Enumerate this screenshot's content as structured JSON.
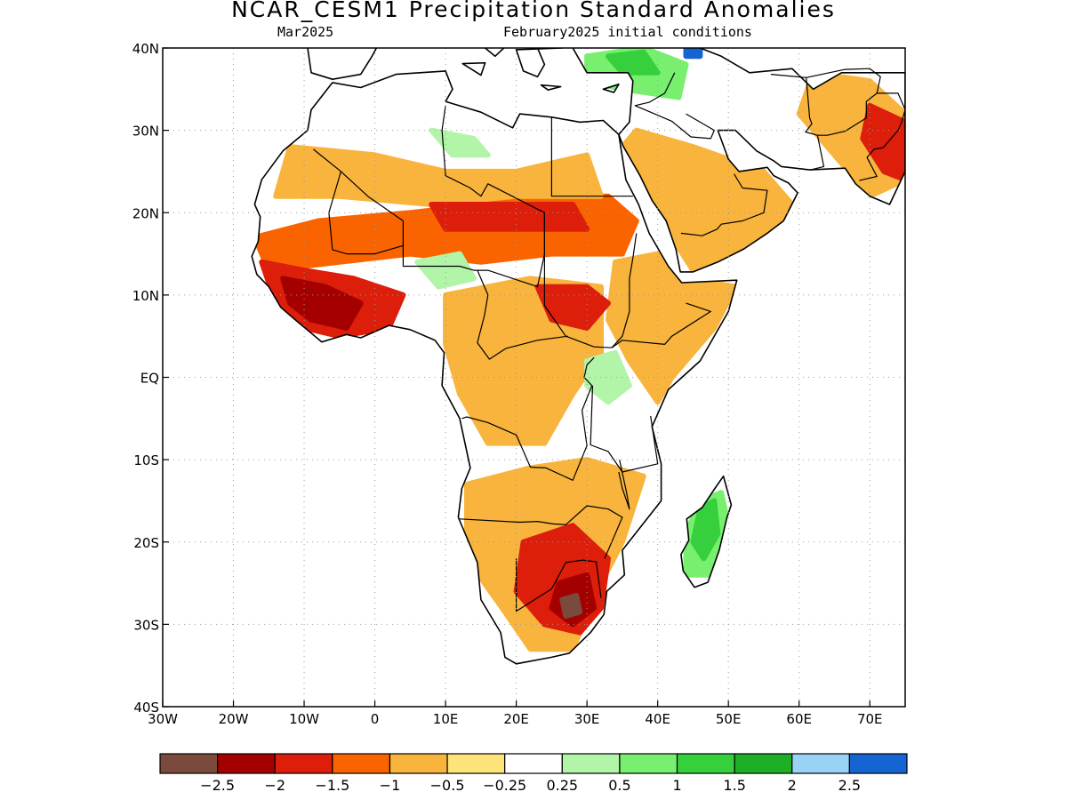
{
  "header": {
    "title": "NCAR_CESM1 Precipitation Standard Anomalies",
    "valid_month": "Mar2025",
    "init_conditions": "February2025 initial conditions"
  },
  "map": {
    "lon_range": [
      -30,
      75
    ],
    "lat_range": [
      -40,
      40
    ],
    "lat_ticks": [
      {
        "value": 40,
        "label": "40N"
      },
      {
        "value": 30,
        "label": "30N"
      },
      {
        "value": 20,
        "label": "20N"
      },
      {
        "value": 10,
        "label": "10N"
      },
      {
        "value": 0,
        "label": "EQ"
      },
      {
        "value": -10,
        "label": "10S"
      },
      {
        "value": -20,
        "label": "20S"
      },
      {
        "value": -30,
        "label": "30S"
      },
      {
        "value": -40,
        "label": "40S"
      }
    ],
    "lon_ticks": [
      {
        "value": -30,
        "label": "30W"
      },
      {
        "value": -20,
        "label": "20W"
      },
      {
        "value": -10,
        "label": "10W"
      },
      {
        "value": 0,
        "label": "0"
      },
      {
        "value": 10,
        "label": "10E"
      },
      {
        "value": 20,
        "label": "20E"
      },
      {
        "value": 30,
        "label": "30E"
      },
      {
        "value": 40,
        "label": "40E"
      },
      {
        "value": 50,
        "label": "50E"
      },
      {
        "value": 60,
        "label": "60E"
      },
      {
        "value": 70,
        "label": "70E"
      }
    ],
    "anomaly_regions": [
      {
        "name": "sahel-band-dry",
        "level": -1,
        "points": [
          [
            -17,
            17
          ],
          [
            -8,
            19
          ],
          [
            5,
            20
          ],
          [
            15,
            21
          ],
          [
            25,
            22
          ],
          [
            33,
            22
          ],
          [
            37,
            19
          ],
          [
            35,
            15
          ],
          [
            25,
            15
          ],
          [
            15,
            14
          ],
          [
            5,
            15
          ],
          [
            -5,
            14
          ],
          [
            -15,
            13
          ]
        ]
      },
      {
        "name": "sahara-light-dry",
        "level": -0.5,
        "points": [
          [
            -12,
            28
          ],
          [
            0,
            27
          ],
          [
            10,
            25
          ],
          [
            20,
            25
          ],
          [
            30,
            27
          ],
          [
            32,
            22
          ],
          [
            20,
            22
          ],
          [
            8,
            21
          ],
          [
            -5,
            22
          ],
          [
            -14,
            22
          ]
        ]
      },
      {
        "name": "arabia-dry",
        "level": -0.5,
        "points": [
          [
            37,
            30
          ],
          [
            45,
            28
          ],
          [
            55,
            25
          ],
          [
            59,
            21
          ],
          [
            55,
            16
          ],
          [
            45,
            13
          ],
          [
            42,
            17
          ],
          [
            38,
            24
          ],
          [
            35,
            28
          ]
        ]
      },
      {
        "name": "east-africa-dry",
        "level": -0.5,
        "points": [
          [
            34,
            14
          ],
          [
            40,
            15
          ],
          [
            44,
            12
          ],
          [
            51,
            11
          ],
          [
            48,
            6
          ],
          [
            42,
            0
          ],
          [
            40,
            -3
          ],
          [
            36,
            2
          ],
          [
            33,
            7
          ]
        ]
      },
      {
        "name": "central-africa-dry",
        "level": -0.5,
        "points": [
          [
            10,
            10
          ],
          [
            22,
            12
          ],
          [
            32,
            11
          ],
          [
            32,
            3
          ],
          [
            28,
            -2
          ],
          [
            24,
            -8
          ],
          [
            16,
            -8
          ],
          [
            12,
            -2
          ],
          [
            10,
            4
          ]
        ]
      },
      {
        "name": "southern-africa-dry",
        "level": -0.5,
        "points": [
          [
            13,
            -13
          ],
          [
            22,
            -11
          ],
          [
            30,
            -10
          ],
          [
            38,
            -12
          ],
          [
            35,
            -20
          ],
          [
            32,
            -25
          ],
          [
            28,
            -33
          ],
          [
            22,
            -33
          ],
          [
            18,
            -28
          ],
          [
            13,
            -22
          ]
        ]
      },
      {
        "name": "south-asia-dry",
        "level": -0.5,
        "points": [
          [
            62,
            37
          ],
          [
            70,
            36
          ],
          [
            75,
            32
          ],
          [
            75,
            24
          ],
          [
            70,
            22
          ],
          [
            65,
            27
          ],
          [
            60,
            32
          ]
        ]
      },
      {
        "name": "west-africa-strong-dry",
        "level": -1.5,
        "points": [
          [
            -16,
            14
          ],
          [
            -10,
            13
          ],
          [
            -3,
            12
          ],
          [
            4,
            10
          ],
          [
            2,
            6
          ],
          [
            -5,
            5
          ],
          [
            -10,
            6
          ],
          [
            -14,
            9
          ]
        ]
      },
      {
        "name": "sahel-strong-dry",
        "level": -1.5,
        "points": [
          [
            8,
            21
          ],
          [
            18,
            21
          ],
          [
            28,
            21
          ],
          [
            30,
            18
          ],
          [
            20,
            18
          ],
          [
            10,
            18
          ]
        ]
      },
      {
        "name": "south-sudan-strong-dry",
        "level": -1.5,
        "points": [
          [
            23,
            11
          ],
          [
            30,
            11
          ],
          [
            33,
            9
          ],
          [
            30,
            6
          ],
          [
            25,
            7
          ]
        ]
      },
      {
        "name": "southern-africa-strong-dry",
        "level": -1.5,
        "points": [
          [
            21,
            -20
          ],
          [
            28,
            -18
          ],
          [
            33,
            -22
          ],
          [
            32,
            -28
          ],
          [
            29,
            -31
          ],
          [
            24,
            -30
          ],
          [
            20,
            -26
          ]
        ]
      },
      {
        "name": "india-strong-dry",
        "level": -1.5,
        "points": [
          [
            70,
            33
          ],
          [
            75,
            31
          ],
          [
            75,
            24
          ],
          [
            72,
            25
          ],
          [
            69,
            29
          ]
        ]
      },
      {
        "name": "west-africa-severe-dry",
        "level": -2,
        "points": [
          [
            -13,
            12
          ],
          [
            -7,
            11
          ],
          [
            -2,
            9
          ],
          [
            -4,
            6
          ],
          [
            -9,
            7
          ],
          [
            -12,
            9
          ]
        ]
      },
      {
        "name": "southern-africa-severe-dry",
        "level": -2,
        "points": [
          [
            26,
            -25
          ],
          [
            30,
            -24
          ],
          [
            31,
            -28
          ],
          [
            28,
            -30
          ],
          [
            25,
            -28
          ]
        ]
      },
      {
        "name": "lesotho-extreme-dry",
        "level": -2.5,
        "points": [
          [
            26.5,
            -27
          ],
          [
            28.5,
            -26.5
          ],
          [
            29,
            -28.5
          ],
          [
            27,
            -29
          ]
        ]
      },
      {
        "name": "madagascar-wet",
        "level": 1,
        "points": [
          [
            46,
            -15
          ],
          [
            49,
            -14
          ],
          [
            50,
            -18
          ],
          [
            47,
            -24
          ],
          [
            44,
            -24
          ],
          [
            44,
            -19
          ]
        ]
      },
      {
        "name": "madagascar-strong-wet",
        "level": 1.5,
        "points": [
          [
            46,
            -16
          ],
          [
            48,
            -15
          ],
          [
            48.5,
            -19
          ],
          [
            46.5,
            -22
          ],
          [
            45,
            -20
          ]
        ]
      },
      {
        "name": "eastern-mediterranean-wet",
        "level": 1,
        "points": [
          [
            30,
            39
          ],
          [
            38,
            40
          ],
          [
            44,
            38
          ],
          [
            43,
            34
          ],
          [
            35,
            35
          ],
          [
            30,
            36
          ]
        ]
      },
      {
        "name": "eastern-mediterranean-strong-wet",
        "level": 1.5,
        "points": [
          [
            33,
            39
          ],
          [
            38,
            39.5
          ],
          [
            40,
            37
          ],
          [
            35,
            37
          ]
        ]
      },
      {
        "name": "lake-victoria-wet",
        "level": 0.5,
        "points": [
          [
            30,
            2
          ],
          [
            34,
            3
          ],
          [
            36,
            -1
          ],
          [
            33,
            -3
          ],
          [
            30,
            -1
          ]
        ]
      },
      {
        "name": "libya-wet",
        "level": 0.5,
        "points": [
          [
            8,
            30
          ],
          [
            14,
            29
          ],
          [
            16,
            27
          ],
          [
            11,
            27
          ]
        ]
      },
      {
        "name": "nigeria-wet",
        "level": 0.5,
        "points": [
          [
            6,
            14
          ],
          [
            12,
            15
          ],
          [
            14,
            12
          ],
          [
            9,
            11
          ]
        ]
      },
      {
        "name": "caucasus-very-wet",
        "level": 2.5,
        "points": [
          [
            44,
            40
          ],
          [
            46,
            40
          ],
          [
            46,
            39
          ],
          [
            44,
            39
          ]
        ]
      }
    ]
  },
  "legend": {
    "bins": [
      {
        "color": "#7a4a3d"
      },
      {
        "color": "#a50000"
      },
      {
        "color": "#dc1e0a"
      },
      {
        "color": "#fa6400"
      },
      {
        "color": "#f8b43c"
      },
      {
        "color": "#fde47a"
      },
      {
        "color": "#ffffff"
      },
      {
        "color": "#b2f5a8"
      },
      {
        "color": "#78ef6e"
      },
      {
        "color": "#36d03c"
      },
      {
        "color": "#1daf25"
      },
      {
        "color": "#9ad2f5"
      },
      {
        "color": "#1464d2"
      }
    ],
    "labels": [
      "−2.5",
      "−2",
      "−1.5",
      "−1",
      "−0.5",
      "−0.25",
      "0.25",
      "0.5",
      "1",
      "1.5",
      "2",
      "2.5"
    ]
  }
}
